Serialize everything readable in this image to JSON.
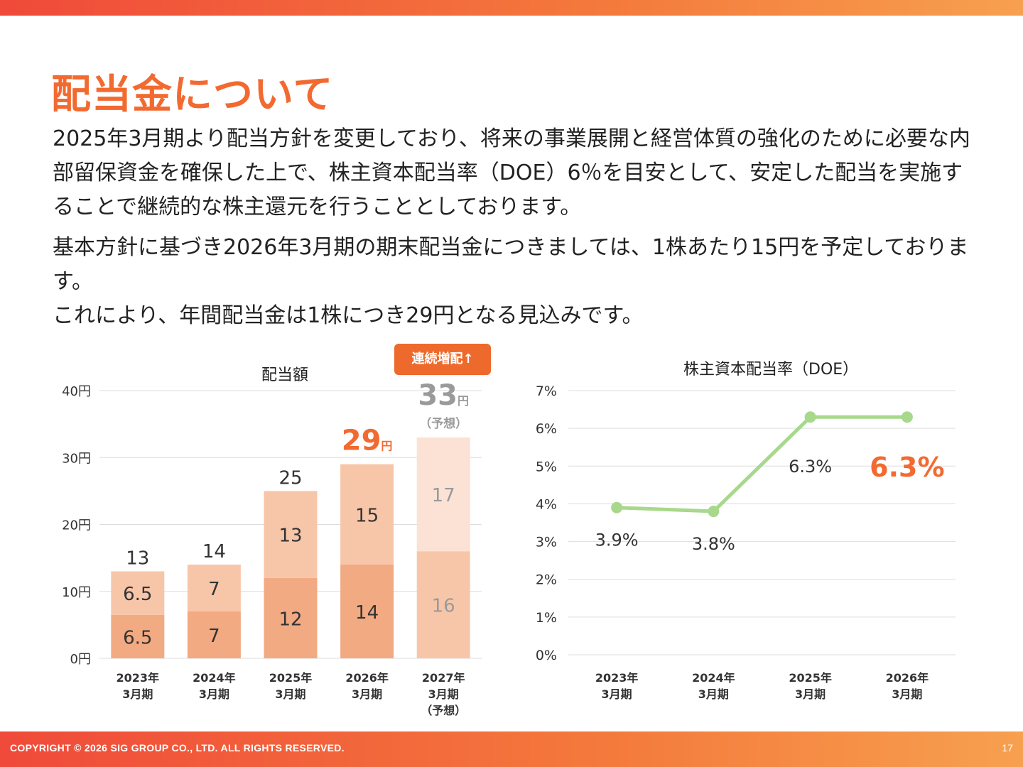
{
  "title": "配当金について",
  "paragraph1": "2025年3月期より配当方針を変更しており、将来の事業展開と経営体質の強化のために必要な内部留保資金を確保した上で、株主資本配当率（DOE）6％を目安として、安定した配当を実施することで継続的な株主還元を行うこととしております。",
  "paragraph2_lines": [
    "基本方針に基づき2026年3月期の期末配当金につきましては、1株あたり15円を予定しております。",
    "これにより、年間配当金は1株につき29円となる見込みです。"
  ],
  "badge": "連続増配↑",
  "colors": {
    "accent": "#f26a30",
    "bar_dark": "#f2aa83",
    "bar_light": "#f7c6a9",
    "bar_forecast_dark": "#f7c6a9",
    "bar_forecast_light": "#fbe2d4",
    "line": "#a8d88b",
    "grid": "#dddddd"
  },
  "footer": {
    "copyright": "COPYRIGHT © 2026 SIG GROUP CO., LTD. ALL RIGHTS RESERVED.",
    "page": "17"
  },
  "chart_data": [
    {
      "type": "bar",
      "stacked": true,
      "title": "配当額",
      "categories": [
        [
          "2023年",
          "3月期"
        ],
        [
          "2024年",
          "3月期"
        ],
        [
          "2025年",
          "3月期"
        ],
        [
          "2026年",
          "3月期"
        ],
        [
          "2027年",
          "3月期",
          "（予想）"
        ]
      ],
      "series": [
        {
          "values": [
            6.5,
            7,
            12,
            14,
            16
          ]
        },
        {
          "values": [
            6.5,
            7,
            13,
            15,
            17
          ]
        }
      ],
      "totals": [
        "13",
        "14",
        "25",
        "29",
        "33"
      ],
      "total_unit": "円",
      "highlight_index": 3,
      "forecast_index": 4,
      "forecast_note": "（予想）",
      "ylim": [
        0,
        40
      ],
      "yticks": [
        "0円",
        "10円",
        "20円",
        "30円",
        "40円"
      ],
      "grid": true
    },
    {
      "type": "line",
      "title": "株主資本配当率（DOE）",
      "categories": [
        [
          "2023年",
          "3月期"
        ],
        [
          "2024年",
          "3月期"
        ],
        [
          "2025年",
          "3月期"
        ],
        [
          "2026年",
          "3月期"
        ]
      ],
      "values": [
        3.9,
        3.8,
        6.3,
        6.3
      ],
      "labels": [
        "3.9%",
        "3.8%",
        "6.3%",
        "6.3%"
      ],
      "highlight_index": 3,
      "ylim": [
        0,
        7
      ],
      "yticks": [
        "0%",
        "1%",
        "2%",
        "3%",
        "4%",
        "5%",
        "6%",
        "7%"
      ],
      "grid": true
    }
  ]
}
